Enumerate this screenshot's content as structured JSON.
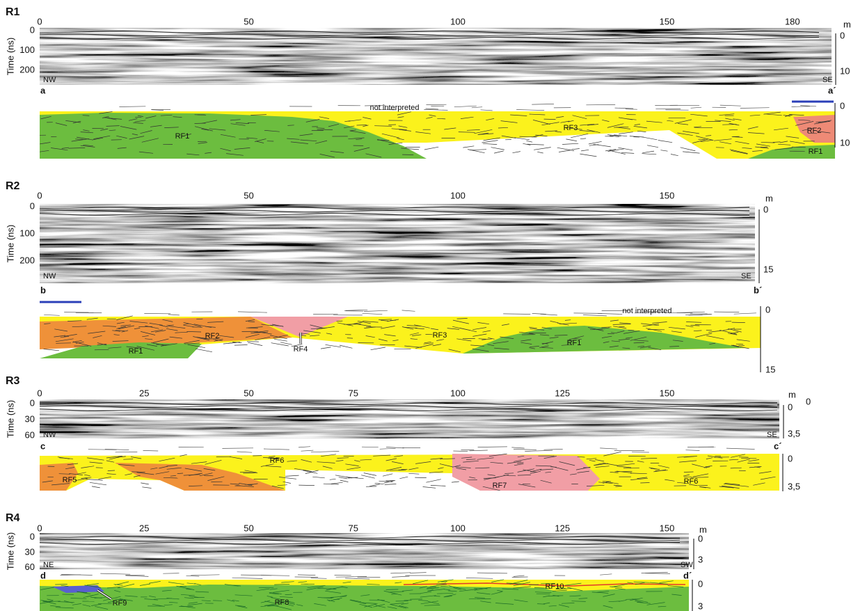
{
  "panels": [
    {
      "title": "R1",
      "distance_unit": "m",
      "distance_ticks": [
        0,
        50,
        100,
        150,
        180
      ],
      "time_axis_label": "Time (ns)",
      "time_ticks": [
        0,
        100,
        200
      ],
      "radargram_depth_ticks": [
        0,
        10
      ],
      "section_depth_ticks": [
        0,
        10
      ],
      "start_direction": "NW",
      "end_direction": "SE",
      "section_start": "a",
      "section_end": "a´",
      "annotations": [
        "not interpreted"
      ],
      "units": [
        "RF1",
        "RF3",
        "RF2",
        "RF1"
      ]
    },
    {
      "title": "R2",
      "distance_unit": "m",
      "distance_ticks": [
        0,
        50,
        100,
        150
      ],
      "time_axis_label": "Time (ns)",
      "time_ticks": [
        0,
        100,
        200
      ],
      "radargram_depth_ticks": [
        0,
        15
      ],
      "section_depth_ticks": [
        0,
        15
      ],
      "start_direction": "NW",
      "end_direction": "SE",
      "section_start": "b",
      "section_end": "b´",
      "annotations": [
        "not interpreted"
      ],
      "units": [
        "RF2",
        "RF1",
        "RF4",
        "RF3",
        "RF1"
      ]
    },
    {
      "title": "R3",
      "distance_unit": "m",
      "extra_labels": [
        "0"
      ],
      "distance_ticks": [
        0,
        25,
        50,
        75,
        100,
        125,
        150
      ],
      "time_axis_label": "Time (ns)",
      "time_ticks": [
        0,
        30,
        60
      ],
      "radargram_depth_ticks": [
        0,
        {
          "value": 3.5,
          "label": "3,5"
        }
      ],
      "section_depth_ticks": [
        0,
        {
          "value": 3.5,
          "label": "3,5"
        }
      ],
      "start_direction": "NW",
      "end_direction": "SE",
      "section_start": "c",
      "section_end": "c´",
      "units": [
        "RF5",
        "RF6",
        "RF7",
        "RF6"
      ]
    },
    {
      "title": "R4",
      "distance_unit": "m",
      "distance_ticks": [
        0,
        25,
        50,
        75,
        100,
        125,
        150
      ],
      "time_axis_label": "Time (ns)",
      "time_ticks": [
        0,
        30,
        60
      ],
      "radargram_depth_ticks": [
        0,
        3
      ],
      "section_depth_ticks": [
        0,
        3
      ],
      "start_direction": "NE",
      "end_direction": "SW",
      "section_start": "d",
      "section_end": "d´",
      "units": [
        "RF10",
        "RF9",
        "RF8"
      ]
    }
  ]
}
